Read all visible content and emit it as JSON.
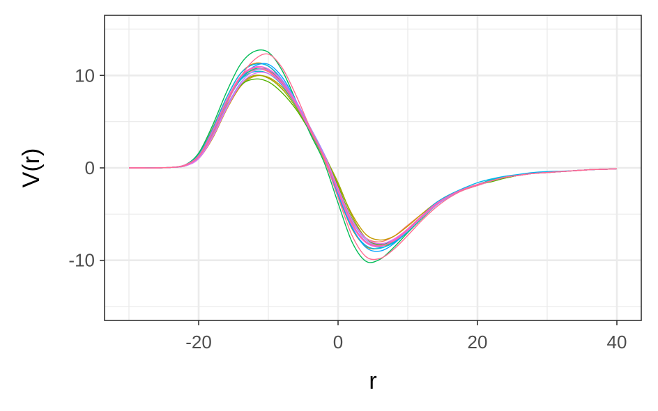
{
  "chart_data": {
    "type": "line",
    "title": "",
    "xlabel": "r",
    "ylabel": "V(r)",
    "xlim": [
      -33.5,
      43.5
    ],
    "ylim": [
      -16.5,
      16.5
    ],
    "x_ticks": [
      -20,
      0,
      20,
      40
    ],
    "x_tick_labels": [
      "-20",
      "0",
      "20",
      "40"
    ],
    "y_ticks": [
      -10,
      0,
      10
    ],
    "y_tick_labels": [
      "-10",
      "0",
      "10"
    ],
    "x_minor": [
      -30,
      -10,
      10,
      30
    ],
    "y_minor": [
      -15,
      -5,
      5,
      15
    ],
    "grid": true,
    "legend": "none",
    "colors": [
      "#F8766D",
      "#E38900",
      "#C49A00",
      "#99A800",
      "#53B400",
      "#00BC56",
      "#00C094",
      "#00BFC4",
      "#00B6EB",
      "#06A4FF",
      "#A58AFF",
      "#DF70F8",
      "#FB61D7",
      "#FF66A8",
      "#FF6C91"
    ],
    "x": [
      -30,
      -28,
      -26,
      -24,
      -22,
      -20,
      -18,
      -16,
      -14,
      -12,
      -10,
      -8,
      -6,
      -4,
      -2,
      0,
      2,
      4,
      6,
      8,
      10,
      12,
      14,
      16,
      18,
      20,
      22,
      24,
      26,
      28,
      30,
      32,
      34,
      36,
      38,
      40
    ],
    "series": [
      {
        "values": [
          0,
          0,
          0,
          0.05,
          0.3,
          1.4,
          4.0,
          7.2,
          9.6,
          10.6,
          10.4,
          9.0,
          6.8,
          4.0,
          1.2,
          -2.4,
          -5.8,
          -7.6,
          -8.0,
          -7.4,
          -6.2,
          -5.0,
          -3.8,
          -2.9,
          -2.3,
          -1.9,
          -1.4,
          -1.0,
          -0.8,
          -0.6,
          -0.5,
          -0.4,
          -0.3,
          -0.2,
          -0.15,
          -0.1
        ]
      },
      {
        "values": [
          0,
          0,
          0,
          0.05,
          0.3,
          1.5,
          4.3,
          7.6,
          10.2,
          11.3,
          11.0,
          9.4,
          6.8,
          3.8,
          0.9,
          -3.0,
          -6.6,
          -8.5,
          -8.7,
          -7.9,
          -6.6,
          -5.2,
          -4.0,
          -3.0,
          -2.4,
          -1.9,
          -1.4,
          -1.1,
          -0.8,
          -0.6,
          -0.5,
          -0.4,
          -0.3,
          -0.2,
          -0.15,
          -0.1
        ]
      },
      {
        "values": [
          0,
          0,
          0,
          0.05,
          0.2,
          1.0,
          3.2,
          6.3,
          8.8,
          9.9,
          9.8,
          8.7,
          6.7,
          4.1,
          1.5,
          -1.8,
          -5.0,
          -7.2,
          -7.8,
          -7.4,
          -6.3,
          -5.0,
          -3.8,
          -2.9,
          -2.3,
          -1.9,
          -1.4,
          -1.0,
          -0.8,
          -0.6,
          -0.5,
          -0.4,
          -0.3,
          -0.2,
          -0.15,
          -0.1
        ]
      },
      {
        "values": [
          0,
          0,
          0,
          0.05,
          0.25,
          1.2,
          3.6,
          6.7,
          9.0,
          10.0,
          9.7,
          8.5,
          6.5,
          4.0,
          1.4,
          -1.6,
          -5.2,
          -7.6,
          -8.4,
          -8.0,
          -6.8,
          -5.3,
          -4.0,
          -3.0,
          -2.3,
          -1.8,
          -1.3,
          -1.0,
          -0.8,
          -0.6,
          -0.5,
          -0.4,
          -0.3,
          -0.2,
          -0.15,
          -0.1
        ]
      },
      {
        "values": [
          0,
          0,
          0,
          0.05,
          0.2,
          1.1,
          3.5,
          6.6,
          8.9,
          9.6,
          9.3,
          8.1,
          6.3,
          3.9,
          1.4,
          -2.0,
          -5.5,
          -7.6,
          -8.3,
          -7.8,
          -6.7,
          -5.3,
          -4.0,
          -3.1,
          -2.3,
          -1.8,
          -1.5,
          -1.1,
          -0.8,
          -0.6,
          -0.5,
          -0.4,
          -0.3,
          -0.2,
          -0.15,
          -0.1
        ]
      },
      {
        "values": [
          0,
          0,
          0,
          0.05,
          0.3,
          1.6,
          4.6,
          8.2,
          11.2,
          12.6,
          12.5,
          10.5,
          7.2,
          3.7,
          0.6,
          -3.8,
          -8.0,
          -10.1,
          -9.9,
          -8.6,
          -7.0,
          -5.5,
          -4.1,
          -3.1,
          -2.4,
          -1.9,
          -1.4,
          -1.0,
          -0.8,
          -0.6,
          -0.5,
          -0.4,
          -0.3,
          -0.2,
          -0.15,
          -0.1
        ]
      },
      {
        "values": [
          0,
          0,
          0,
          0.05,
          0.3,
          1.3,
          3.9,
          7.1,
          9.6,
          10.7,
          10.6,
          9.2,
          6.9,
          4.1,
          1.2,
          -2.6,
          -6.1,
          -8.0,
          -8.4,
          -7.8,
          -6.6,
          -5.2,
          -3.9,
          -3.0,
          -2.3,
          -1.9,
          -1.4,
          -1.0,
          -0.8,
          -0.6,
          -0.5,
          -0.4,
          -0.3,
          -0.2,
          -0.15,
          -0.1
        ]
      },
      {
        "values": [
          0,
          0,
          0,
          0.05,
          0.3,
          1.3,
          3.8,
          7.0,
          9.5,
          10.4,
          10.2,
          8.9,
          6.7,
          4.0,
          1.2,
          -2.5,
          -6.0,
          -8.0,
          -8.6,
          -8.1,
          -6.9,
          -5.4,
          -4.0,
          -3.0,
          -2.3,
          -1.8,
          -1.3,
          -1.0,
          -0.8,
          -0.6,
          -0.5,
          -0.4,
          -0.3,
          -0.2,
          -0.15,
          -0.1
        ]
      },
      {
        "values": [
          0,
          0,
          0,
          0.05,
          0.3,
          1.4,
          4.2,
          7.6,
          10.2,
          11.2,
          11.0,
          9.5,
          7.0,
          4.0,
          1.0,
          -2.9,
          -6.5,
          -8.4,
          -8.7,
          -8.0,
          -6.7,
          -5.2,
          -3.8,
          -2.9,
          -2.2,
          -1.6,
          -1.2,
          -0.9,
          -0.7,
          -0.5,
          -0.4,
          -0.35,
          -0.3,
          -0.2,
          -0.15,
          -0.1
        ]
      },
      {
        "values": [
          0,
          0,
          0,
          0.05,
          0.25,
          1.2,
          3.7,
          7.0,
          9.6,
          11.0,
          11.2,
          9.8,
          7.2,
          4.1,
          1.1,
          -2.8,
          -6.4,
          -8.6,
          -9.0,
          -8.2,
          -6.8,
          -5.3,
          -4.0,
          -3.0,
          -2.3,
          -1.8,
          -1.4,
          -1.0,
          -0.8,
          -0.6,
          -0.5,
          -0.4,
          -0.3,
          -0.2,
          -0.15,
          -0.1
        ]
      },
      {
        "values": [
          0,
          0,
          0,
          0.05,
          0.2,
          1.1,
          3.4,
          6.6,
          9.2,
          10.5,
          10.6,
          9.5,
          7.2,
          4.4,
          1.5,
          -2.2,
          -5.7,
          -7.8,
          -8.4,
          -7.9,
          -6.8,
          -5.4,
          -4.1,
          -3.1,
          -2.4,
          -1.9,
          -1.4,
          -1.0,
          -0.8,
          -0.6,
          -0.5,
          -0.4,
          -0.3,
          -0.2,
          -0.15,
          -0.1
        ]
      },
      {
        "values": [
          0,
          0,
          0,
          0.05,
          0.2,
          1.0,
          3.3,
          6.4,
          9.0,
          10.2,
          10.2,
          9.0,
          6.8,
          4.1,
          1.3,
          -2.2,
          -5.6,
          -7.6,
          -8.2,
          -7.7,
          -6.6,
          -5.3,
          -4.0,
          -3.0,
          -2.3,
          -1.9,
          -1.4,
          -1.0,
          -0.8,
          -0.6,
          -0.5,
          -0.4,
          -0.3,
          -0.2,
          -0.15,
          -0.1
        ]
      },
      {
        "values": [
          0,
          0,
          0,
          0.05,
          0.3,
          1.3,
          4.0,
          7.3,
          9.9,
          10.9,
          10.7,
          9.3,
          7.0,
          4.1,
          1.2,
          -2.6,
          -6.2,
          -8.1,
          -8.5,
          -7.8,
          -6.6,
          -5.2,
          -3.9,
          -3.0,
          -2.3,
          -1.8,
          -1.4,
          -1.0,
          -0.8,
          -0.6,
          -0.5,
          -0.4,
          -0.3,
          -0.2,
          -0.15,
          -0.1
        ]
      },
      {
        "values": [
          0,
          0,
          0,
          0.05,
          0.3,
          1.3,
          3.9,
          7.2,
          9.8,
          10.8,
          10.5,
          9.1,
          6.8,
          4.0,
          1.2,
          -2.5,
          -6.0,
          -8.0,
          -8.4,
          -7.9,
          -6.7,
          -5.3,
          -4.0,
          -3.0,
          -2.3,
          -1.8,
          -1.4,
          -1.0,
          -0.8,
          -0.6,
          -0.5,
          -0.4,
          -0.3,
          -0.2,
          -0.15,
          -0.1
        ]
      },
      {
        "values": [
          0,
          0,
          0,
          0.05,
          0.25,
          1.2,
          3.6,
          6.9,
          9.8,
          11.7,
          12.3,
          10.8,
          7.8,
          4.3,
          1.0,
          -3.2,
          -7.3,
          -9.6,
          -9.8,
          -8.8,
          -7.3,
          -5.7,
          -4.3,
          -3.2,
          -2.4,
          -1.9,
          -1.4,
          -1.0,
          -0.8,
          -0.6,
          -0.5,
          -0.4,
          -0.3,
          -0.2,
          -0.15,
          -0.1
        ]
      }
    ]
  }
}
